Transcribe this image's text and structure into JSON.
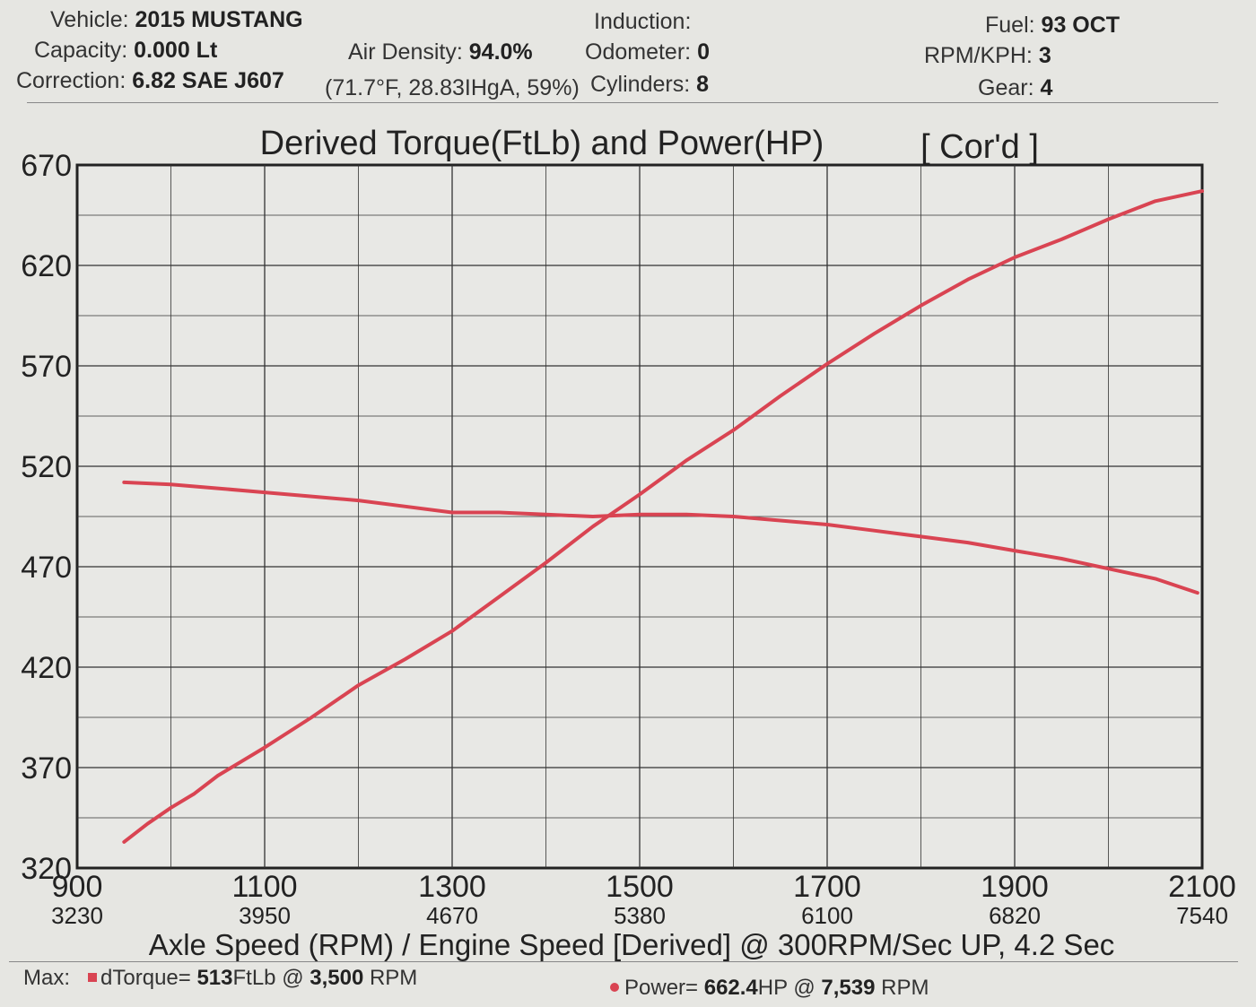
{
  "header": {
    "vehicle": {
      "label": "Vehicle:",
      "value": "2015 MUSTANG"
    },
    "capacity": {
      "label": "Capacity:",
      "value": "0.000 Lt"
    },
    "correction": {
      "label": "Correction:",
      "value": "6.82 SAE J607"
    },
    "air_density": {
      "label": "Air Density:",
      "value": "94.0%"
    },
    "conditions": "(71.7°F, 28.83IHgA, 59%)",
    "induction": {
      "label": "Induction:",
      "value": ""
    },
    "odometer": {
      "label": "Odometer:",
      "value": "0"
    },
    "cylinders": {
      "label": "Cylinders:",
      "value": "8"
    },
    "fuel": {
      "label": "Fuel:",
      "value": "93 OCT"
    },
    "rpm_kph": {
      "label": "RPM/KPH:",
      "value": "3"
    },
    "gear": {
      "label": "Gear:",
      "value": "4"
    }
  },
  "chart_data": {
    "type": "line",
    "title": "Derived Torque(FtLb) and Power(HP)",
    "title_tag": "[ Cor'd ]",
    "xlabel": "Axle Speed (RPM) / Engine Speed [Derived] @ 300RPM/Sec UP, 4.2 Sec",
    "xlim": [
      900,
      2100
    ],
    "ylim": [
      320,
      670
    ],
    "x_ticks": [
      900,
      1100,
      1300,
      1500,
      1700,
      1900,
      2100
    ],
    "x_ticks_secondary": [
      "3230",
      "3950",
      "4670",
      "5380",
      "6100",
      "6820",
      "7540"
    ],
    "y_ticks": [
      320,
      370,
      420,
      470,
      520,
      570,
      620,
      670
    ],
    "grid": true,
    "line_color": "#d94452",
    "series": [
      {
        "name": "dTorque",
        "x": [
          950,
          1000,
          1050,
          1100,
          1150,
          1200,
          1250,
          1300,
          1350,
          1400,
          1450,
          1500,
          1550,
          1600,
          1650,
          1700,
          1750,
          1800,
          1850,
          1900,
          1950,
          2000,
          2050,
          2095
        ],
        "y": [
          512,
          511,
          509,
          507,
          505,
          503,
          500,
          497,
          497,
          496,
          495,
          496,
          496,
          495,
          493,
          491,
          488,
          485,
          482,
          478,
          474,
          469,
          464,
          457
        ]
      },
      {
        "name": "Power",
        "x": [
          950,
          975,
          1000,
          1025,
          1050,
          1075,
          1100,
          1150,
          1200,
          1250,
          1300,
          1350,
          1400,
          1450,
          1500,
          1550,
          1600,
          1650,
          1700,
          1750,
          1800,
          1850,
          1900,
          1950,
          2000,
          2050,
          2100
        ],
        "y": [
          333,
          342,
          350,
          357,
          366,
          373,
          380,
          395,
          411,
          424,
          438,
          455,
          472,
          490,
          506,
          523,
          538,
          555,
          571,
          586,
          600,
          613,
          624,
          633,
          643,
          652,
          657
        ]
      }
    ]
  },
  "footer": {
    "max_label": "Max:",
    "torque_text_1": "dTorque=",
    "torque_val": "513",
    "torque_text_2": "FtLb @",
    "torque_rpm": "3,500",
    "torque_text_3": "RPM",
    "power_text_1": "Power=",
    "power_val": "662.4",
    "power_text_2": "HP @",
    "power_rpm": "7,539",
    "power_text_3": "RPM"
  }
}
